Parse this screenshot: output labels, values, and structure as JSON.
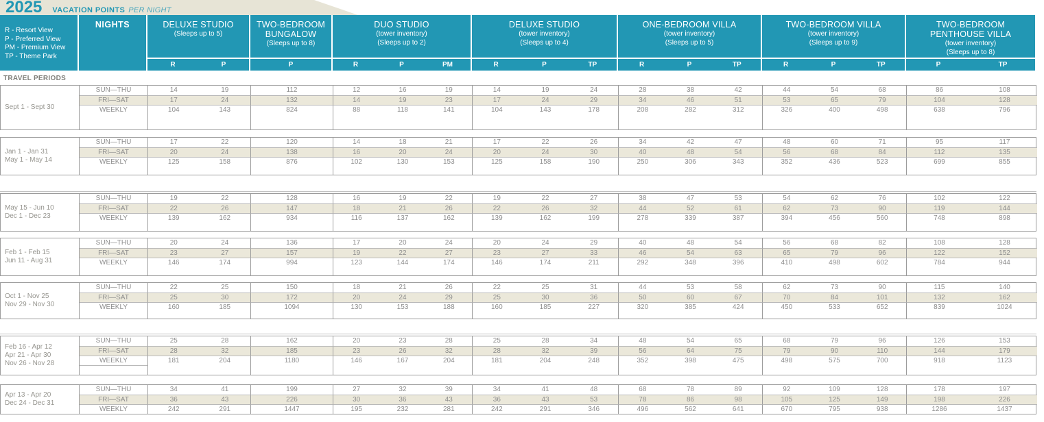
{
  "title": {
    "year": "2025",
    "heading": "VACATION POINTS",
    "subheading": "PER NIGHT"
  },
  "legend_lines": [
    "R - Resort View",
    "P - Preferred View",
    "PM - Premium View",
    "TP - Theme Park"
  ],
  "nights_label": "NIGHTS",
  "travel_periods_label": "TRAVEL PERIODS",
  "colors": {
    "teal": "#2297b4",
    "stripe_beige": "#ebe8da",
    "title_beige": "#e7e4d6"
  },
  "room_types": [
    {
      "lines": [
        "DELUXE STUDIO",
        "(Sleeps up to 5)"
      ],
      "subcols": [
        "R",
        "P"
      ]
    },
    {
      "lines": [
        "TWO-BEDROOM",
        "BUNGALOW",
        "(Sleeps up to 8)"
      ],
      "subcols": [
        "P"
      ]
    },
    {
      "lines": [
        "DUO STUDIO",
        "(tower inventory)",
        "(Sleeps up to 2)"
      ],
      "subcols": [
        "R",
        "P",
        "PM"
      ]
    },
    {
      "lines": [
        "DELUXE STUDIO",
        "(tower inventory)",
        "(Sleeps up to 4)"
      ],
      "subcols": [
        "R",
        "P",
        "TP"
      ]
    },
    {
      "lines": [
        "ONE-BEDROOM VILLA",
        "(tower inventory)",
        "(Sleeps up to 5)"
      ],
      "subcols": [
        "R",
        "P",
        "TP"
      ]
    },
    {
      "lines": [
        "TWO-BEDROOM VILLA",
        "(tower inventory)",
        "(Sleeps up to 9)"
      ],
      "subcols": [
        "R",
        "P",
        "TP"
      ]
    },
    {
      "lines": [
        "TWO-BEDROOM",
        "PENTHOUSE VILLA",
        "(tower inventory)",
        "(Sleeps up to 8)"
      ],
      "subcols": [
        "P",
        "TP"
      ]
    }
  ],
  "periods": [
    {
      "dates": [
        "Sept 1 - Sept 30"
      ],
      "rows": [
        {
          "label": "SUN—THU",
          "values": [
            14,
            19,
            112,
            12,
            16,
            19,
            14,
            19,
            24,
            28,
            38,
            42,
            44,
            54,
            68,
            86,
            108
          ]
        },
        {
          "label": "FRI—SAT",
          "values": [
            17,
            24,
            132,
            14,
            19,
            23,
            17,
            24,
            29,
            34,
            46,
            51,
            53,
            65,
            79,
            104,
            128
          ]
        },
        {
          "label": "WEEKLY",
          "values": [
            104,
            143,
            824,
            88,
            118,
            141,
            104,
            143,
            178,
            208,
            282,
            312,
            326,
            400,
            498,
            638,
            796
          ]
        }
      ]
    },
    {
      "dates": [
        "Jan 1 - Jan 31",
        "May 1 - May 14"
      ],
      "rows": [
        {
          "label": "SUN—THU",
          "values": [
            17,
            22,
            120,
            14,
            18,
            21,
            17,
            22,
            26,
            34,
            42,
            47,
            48,
            60,
            71,
            95,
            117
          ]
        },
        {
          "label": "FRI—SAT",
          "values": [
            20,
            24,
            138,
            16,
            20,
            24,
            20,
            24,
            30,
            40,
            48,
            54,
            56,
            68,
            84,
            112,
            135
          ]
        },
        {
          "label": "WEEKLY",
          "values": [
            125,
            158,
            876,
            102,
            130,
            153,
            125,
            158,
            190,
            250,
            306,
            343,
            352,
            436,
            523,
            699,
            855
          ]
        }
      ]
    },
    {
      "dates": [
        "May 15 - Jun 10",
        "Dec 1 - Dec 23"
      ],
      "rows": [
        {
          "label": "SUN—THU",
          "values": [
            19,
            22,
            128,
            16,
            19,
            22,
            19,
            22,
            27,
            38,
            47,
            53,
            54,
            62,
            76,
            102,
            122
          ]
        },
        {
          "label": "FRI—SAT",
          "values": [
            22,
            26,
            147,
            18,
            21,
            26,
            22,
            26,
            32,
            44,
            52,
            61,
            62,
            73,
            90,
            119,
            144
          ]
        },
        {
          "label": "WEEKLY",
          "values": [
            139,
            162,
            934,
            116,
            137,
            162,
            139,
            162,
            199,
            278,
            339,
            387,
            394,
            456,
            560,
            748,
            898
          ]
        }
      ]
    },
    {
      "dates": [
        "Feb 1 - Feb 15",
        "Jun 11 - Aug 31"
      ],
      "rows": [
        {
          "label": "SUN—THU",
          "values": [
            20,
            24,
            136,
            17,
            20,
            24,
            20,
            24,
            29,
            40,
            48,
            54,
            56,
            68,
            82,
            108,
            128
          ]
        },
        {
          "label": "FRI—SAT",
          "values": [
            23,
            27,
            157,
            19,
            22,
            27,
            23,
            27,
            33,
            46,
            54,
            63,
            65,
            79,
            96,
            122,
            152
          ]
        },
        {
          "label": "WEEKLY",
          "values": [
            146,
            174,
            994,
            123,
            144,
            174,
            146,
            174,
            211,
            292,
            348,
            396,
            410,
            498,
            602,
            784,
            944
          ]
        }
      ]
    },
    {
      "dates": [
        "Oct 1 - Nov 25",
        "Nov 29 - Nov 30"
      ],
      "rows": [
        {
          "label": "SUN—THU",
          "values": [
            22,
            25,
            150,
            18,
            21,
            26,
            22,
            25,
            31,
            44,
            53,
            58,
            62,
            73,
            90,
            115,
            140
          ]
        },
        {
          "label": "FRI—SAT",
          "values": [
            25,
            30,
            172,
            20,
            24,
            29,
            25,
            30,
            36,
            50,
            60,
            67,
            70,
            84,
            101,
            132,
            162
          ]
        },
        {
          "label": "WEEKLY",
          "values": [
            160,
            185,
            1094,
            130,
            153,
            188,
            160,
            185,
            227,
            320,
            385,
            424,
            450,
            533,
            652,
            839,
            1024
          ]
        }
      ]
    },
    {
      "dates": [
        "Feb 16 - Apr 12",
        "Apr 21 - Apr 30",
        "Nov 26 - Nov 28"
      ],
      "rows": [
        {
          "label": "SUN—THU",
          "values": [
            25,
            28,
            162,
            20,
            23,
            28,
            25,
            28,
            34,
            48,
            54,
            65,
            68,
            79,
            96,
            126,
            153
          ]
        },
        {
          "label": "FRI—SAT",
          "values": [
            28,
            32,
            185,
            23,
            26,
            32,
            28,
            32,
            39,
            56,
            64,
            75,
            79,
            90,
            110,
            144,
            179
          ]
        },
        {
          "label": "WEEKLY",
          "values": [
            181,
            204,
            1180,
            146,
            167,
            204,
            181,
            204,
            248,
            352,
            398,
            475,
            498,
            575,
            700,
            918,
            1123
          ]
        }
      ]
    },
    {
      "dates": [
        "Apr 13 - Apr 20",
        "Dec 24 - Dec 31"
      ],
      "rows": [
        {
          "label": "SUN—THU",
          "values": [
            34,
            41,
            199,
            27,
            32,
            39,
            34,
            41,
            48,
            68,
            78,
            89,
            92,
            109,
            128,
            178,
            197
          ]
        },
        {
          "label": "FRI—SAT",
          "values": [
            36,
            43,
            226,
            30,
            36,
            43,
            36,
            43,
            53,
            78,
            86,
            98,
            105,
            125,
            149,
            198,
            226
          ]
        },
        {
          "label": "WEEKLY",
          "values": [
            242,
            291,
            1447,
            195,
            232,
            281,
            242,
            291,
            346,
            496,
            562,
            641,
            670,
            795,
            938,
            1286,
            1437
          ]
        }
      ]
    }
  ]
}
